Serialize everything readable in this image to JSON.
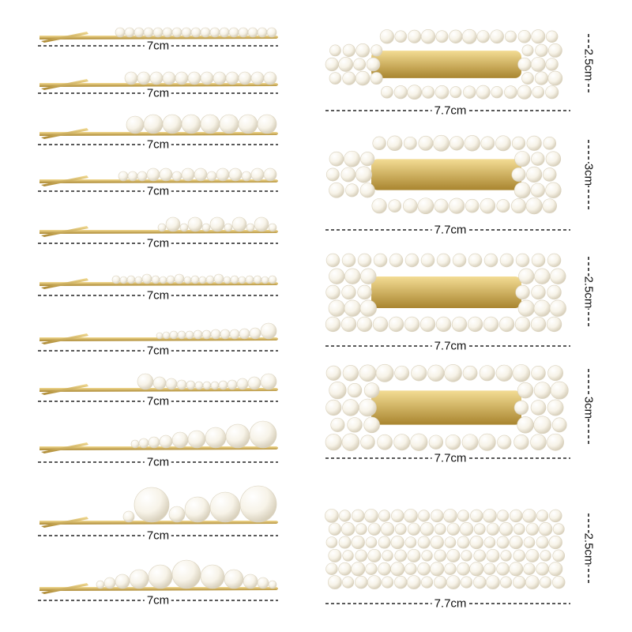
{
  "colors": {
    "gold": "#d4b25a",
    "gold_dark": "#a9852f",
    "pearl": "#f7f3e8",
    "pearl_shadow": "#d9d1bd",
    "dash": "#222222"
  },
  "bobby_pins": [
    {
      "length_label": "7cm",
      "pearls": [
        12,
        12,
        12,
        12,
        12,
        12,
        12,
        12,
        12,
        12,
        12,
        12,
        12,
        12,
        12,
        12,
        12
      ]
    },
    {
      "length_label": "7cm",
      "pearls": [
        16,
        16,
        16,
        16,
        16,
        16,
        16,
        16,
        16,
        16,
        16,
        16
      ]
    },
    {
      "length_label": "7cm",
      "pearls": [
        22,
        24,
        24,
        24,
        24,
        24,
        24,
        24
      ]
    },
    {
      "length_label": "7cm",
      "pearls": [
        12,
        12,
        12,
        16,
        16,
        12,
        16,
        16,
        12,
        16,
        16,
        12,
        16,
        16
      ]
    },
    {
      "length_label": "7cm",
      "pearls": [
        10,
        18,
        10,
        18,
        10,
        18,
        10,
        18,
        10,
        18,
        10
      ]
    },
    {
      "length_label": "7cm",
      "pearls": [
        10,
        9,
        10,
        9,
        12,
        10,
        9,
        10,
        12,
        9,
        10,
        9,
        10,
        12,
        9,
        10,
        9,
        10,
        10,
        9,
        10
      ]
    },
    {
      "length_label": "7cm",
      "pearls": [
        8,
        9,
        10,
        10,
        10,
        11,
        11,
        12,
        12,
        12,
        13,
        14,
        20
      ]
    },
    {
      "length_label": "7cm",
      "pearls": [
        20,
        16,
        14,
        12,
        11,
        10,
        10,
        10,
        11,
        12,
        14,
        16,
        20
      ]
    },
    {
      "length_label": "7cm",
      "pearls": [
        10,
        12,
        14,
        16,
        20,
        22,
        26,
        30,
        34
      ]
    },
    {
      "length_label": "7cm",
      "pearls": [
        14,
        44,
        20,
        32,
        38,
        46
      ]
    },
    {
      "length_label": "7cm",
      "pearls": [
        10,
        14,
        18,
        24,
        30,
        36,
        30,
        24,
        18,
        14,
        10
      ]
    }
  ],
  "snap_clips": [
    {
      "width_label": "7.7cm",
      "height_label": "2.5cm",
      "shape": "teardrop"
    },
    {
      "width_label": "7.7cm",
      "height_label": "3cm",
      "shape": "teardrop"
    },
    {
      "width_label": "7.7cm",
      "height_label": "2.5cm",
      "shape": "rectangle"
    },
    {
      "width_label": "7.7cm",
      "height_label": "3cm",
      "shape": "wavy"
    },
    {
      "width_label": "7.7cm",
      "height_label": "2.5cm",
      "shape": "rectangle-full"
    }
  ]
}
